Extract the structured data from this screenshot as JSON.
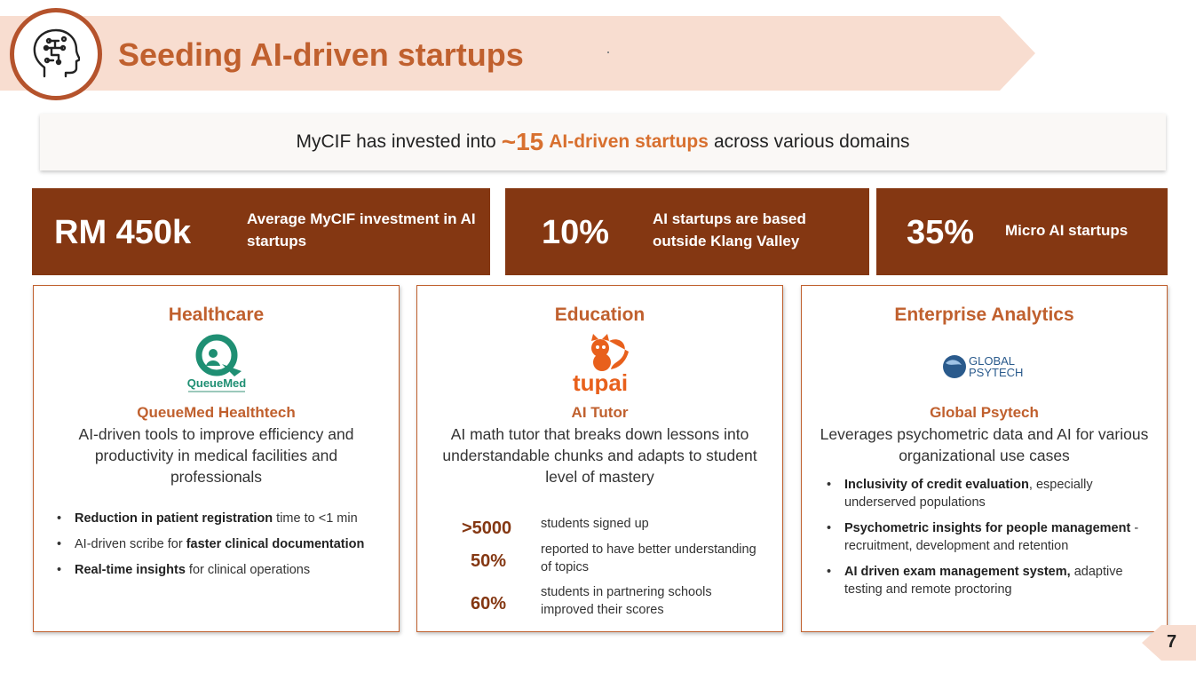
{
  "header": {
    "title": "Seeding AI-driven startups",
    "icon": "ai-head-icon"
  },
  "tagline": {
    "pre": "MyCIF has invested into",
    "big": "~15",
    "accent": "AI-driven startups",
    "post": "across various domains"
  },
  "stats": [
    {
      "value": "RM 450k",
      "label": "Average MyCIF investment in AI startups"
    },
    {
      "value": "10%",
      "label": "AI startups are based outside Klang Valley"
    },
    {
      "value": "35%",
      "label": "Micro AI startups"
    }
  ],
  "cards": [
    {
      "domain": "Healthcare",
      "logo_text": "QueueMed",
      "company": "QueueMed Healthtech",
      "description": "AI-driven tools to improve efficiency and productivity in medical facilities and professionals",
      "bullets": [
        {
          "bold": "Reduction in patient registration",
          "rest": " time to <1 min"
        },
        {
          "pre": "AI-driven scribe for ",
          "bold": "faster clinical documentation"
        },
        {
          "bold": "Real-time insights",
          "rest": " for clinical operations"
        }
      ]
    },
    {
      "domain": "Education",
      "logo_text": "tupai",
      "company": "AI Tutor",
      "description": "AI math tutor that breaks down lessons into understandable chunks and adapts to student level of mastery",
      "stats": [
        {
          "value": ">5000",
          "label": "students signed up"
        },
        {
          "value": "50%",
          "label": "reported to have better understanding of topics"
        },
        {
          "value": "60%",
          "label": "students in partnering schools improved their scores"
        }
      ]
    },
    {
      "domain": "Enterprise Analytics",
      "logo_text_1": "GLOBAL",
      "logo_text_2": "PSYTECH",
      "company": "Global Psytech",
      "description": "Leverages psychometric data and AI for various organizational use cases",
      "bullets": [
        {
          "bold": "Inclusivity of credit evaluation",
          "rest": ", especially underserved populations"
        },
        {
          "bold": "Psychometric insights for people management",
          "rest": " - recruitment, development and retention"
        },
        {
          "bold": "AI driven exam management system,",
          "rest": " adaptive testing and remote proctoring"
        }
      ]
    }
  ],
  "page_number": "7",
  "colors": {
    "accent": "#c0602e",
    "dark": "#843712",
    "light": "#f8ddd0"
  }
}
